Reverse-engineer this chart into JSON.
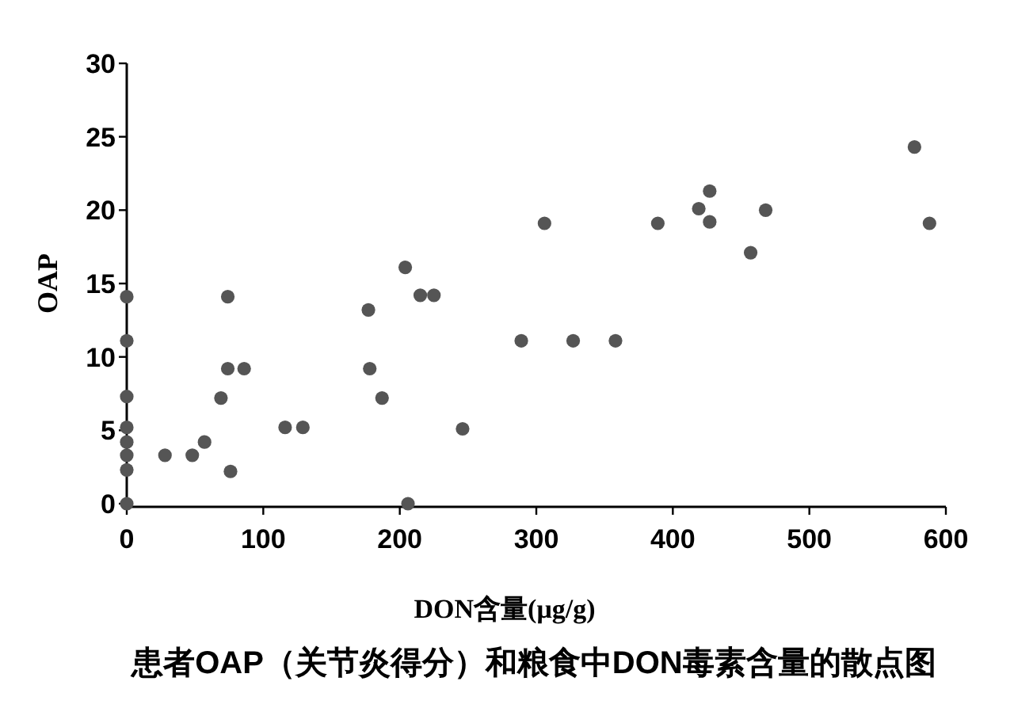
{
  "chart_data": {
    "type": "scatter",
    "title": "患者OAP（关节炎得分）和粮食中DON毒素含量的散点图",
    "xlabel": "DON含量(μg/g)",
    "ylabel": "OAP",
    "x": [
      0,
      0,
      0,
      0,
      0,
      0,
      0,
      0,
      28,
      48,
      57,
      69,
      74,
      74,
      86,
      76,
      116,
      129,
      177,
      178,
      187,
      204,
      206,
      215,
      225,
      246,
      289,
      306,
      327,
      358,
      389,
      427,
      419,
      427,
      468,
      457,
      577,
      588
    ],
    "series": [
      {
        "color": "#555555",
        "values": [
          14.1,
          11.1,
          7.3,
          5.2,
          4.2,
          3.3,
          2.3,
          0,
          3.3,
          3.3,
          4.2,
          7.2,
          14.1,
          9.2,
          9.2,
          2.2,
          5.2,
          5.2,
          13.2,
          9.2,
          7.2,
          16.1,
          0,
          14.2,
          14.2,
          5.1,
          11.1,
          19.1,
          11.1,
          11.1,
          19.1,
          21.3,
          20.1,
          19.2,
          20.0,
          17.1,
          24.3,
          19.1
        ]
      }
    ],
    "xlim": [
      0,
      600
    ],
    "ylim": [
      0,
      30
    ],
    "xticks": [
      0,
      100,
      200,
      300,
      400,
      500,
      600
    ],
    "yticks": [
      0,
      5,
      10,
      15,
      20,
      25,
      30
    ],
    "marker": "circle",
    "grid": false
  }
}
